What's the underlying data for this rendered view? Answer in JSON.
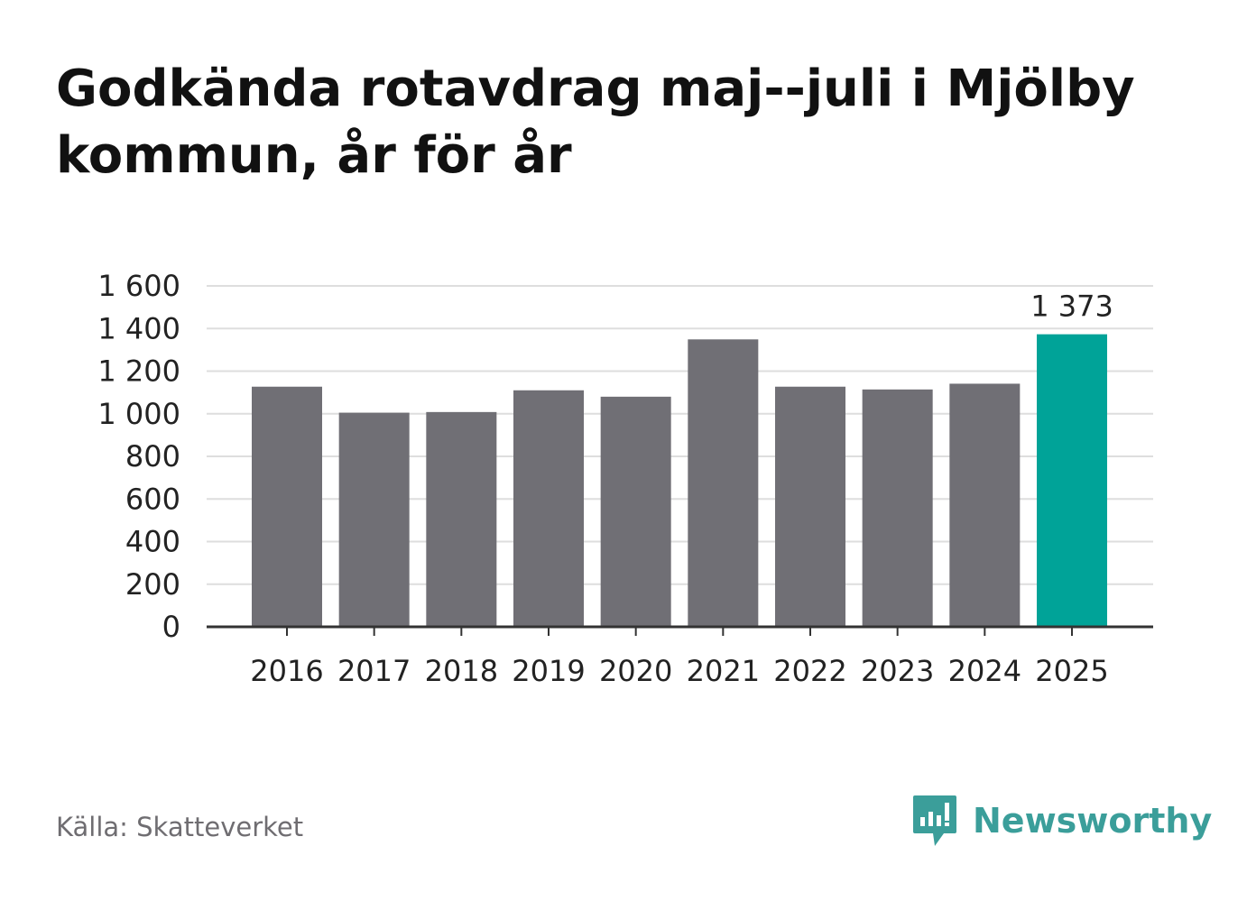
{
  "title": "Godkända rotavdrag maj--juli i Mjölby kommun, år för år",
  "source": "Källa: Skatteverket",
  "brand": {
    "name": "Newsworthy",
    "icon": "newsworthy-logo-icon",
    "color": "#3b9e9a"
  },
  "colors": {
    "bar": "#706f75",
    "highlight": "#00a398",
    "grid": "#dedede",
    "axis": "#333333"
  },
  "chart_data": {
    "type": "bar",
    "title": "Godkända rotavdrag maj--juli i Mjölby kommun, år för år",
    "xlabel": "",
    "ylabel": "",
    "categories": [
      "2016",
      "2017",
      "2018",
      "2019",
      "2020",
      "2021",
      "2022",
      "2023",
      "2024",
      "2025"
    ],
    "values": [
      1127,
      1005,
      1008,
      1110,
      1080,
      1349,
      1127,
      1114,
      1141,
      1373
    ],
    "highlight_index": 9,
    "data_labels": [
      {
        "index": 9,
        "text": "1 373"
      }
    ],
    "ylim": [
      0,
      1600
    ],
    "yticks": [
      0,
      200,
      400,
      600,
      800,
      1000,
      1200,
      1400,
      1600
    ],
    "ytick_labels": [
      "0",
      "200",
      "400",
      "600",
      "800",
      "1 000",
      "1 200",
      "1 400",
      "1 600"
    ],
    "grid": true,
    "legend": "none"
  }
}
